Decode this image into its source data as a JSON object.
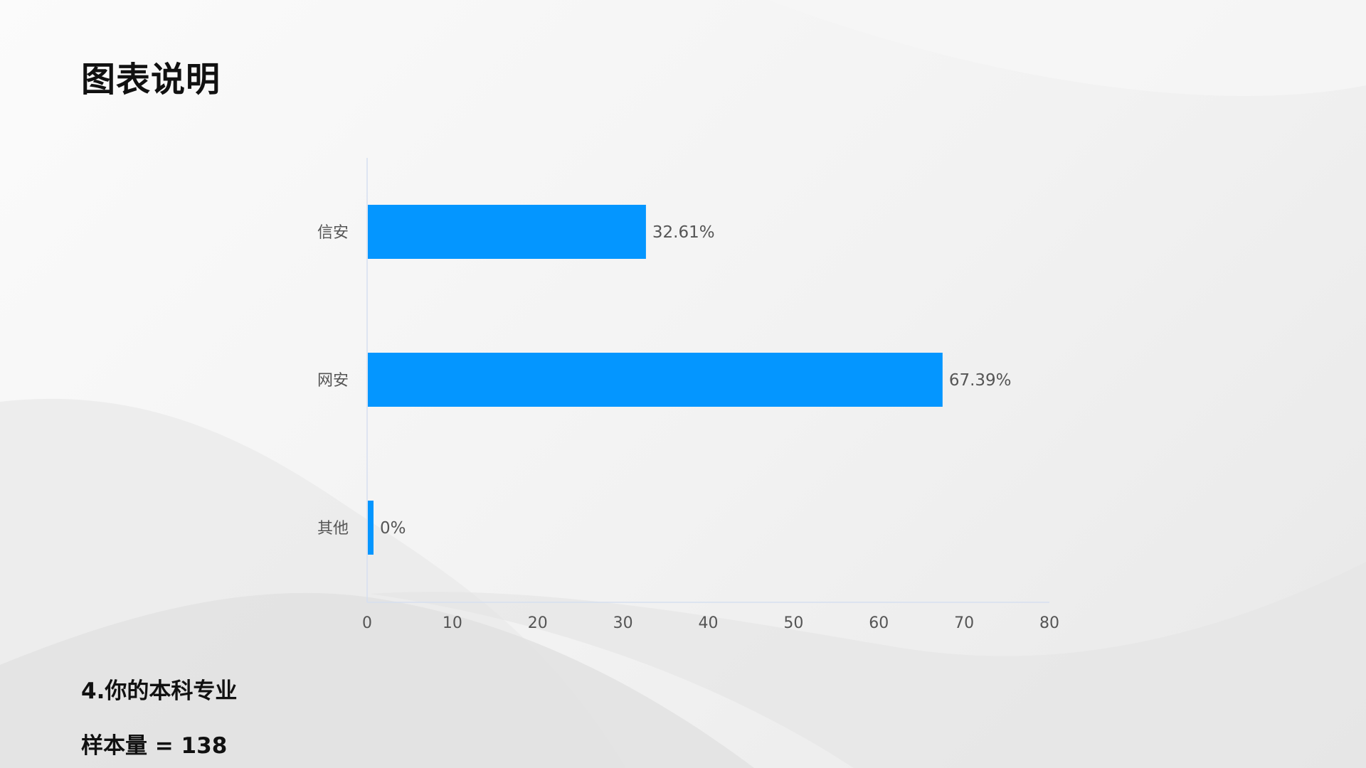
{
  "page": {
    "title": "图表说明",
    "question": "4.你的本科专业",
    "sample_size": "样本量 = 138"
  },
  "chart_data": {
    "type": "bar",
    "orientation": "horizontal",
    "categories": [
      "信安",
      "网安",
      "其他"
    ],
    "values": [
      32.61,
      67.39,
      0
    ],
    "value_labels": [
      "32.61%",
      "67.39%",
      "0%"
    ],
    "xlim": [
      0,
      80
    ],
    "xticks": [
      "0",
      "10",
      "20",
      "30",
      "40",
      "50",
      "60",
      "70",
      "80"
    ],
    "grid": false,
    "legend": "none",
    "bar_color": "#0496ff",
    "axis_color": "#d6dff0",
    "label_color": "#555555"
  }
}
